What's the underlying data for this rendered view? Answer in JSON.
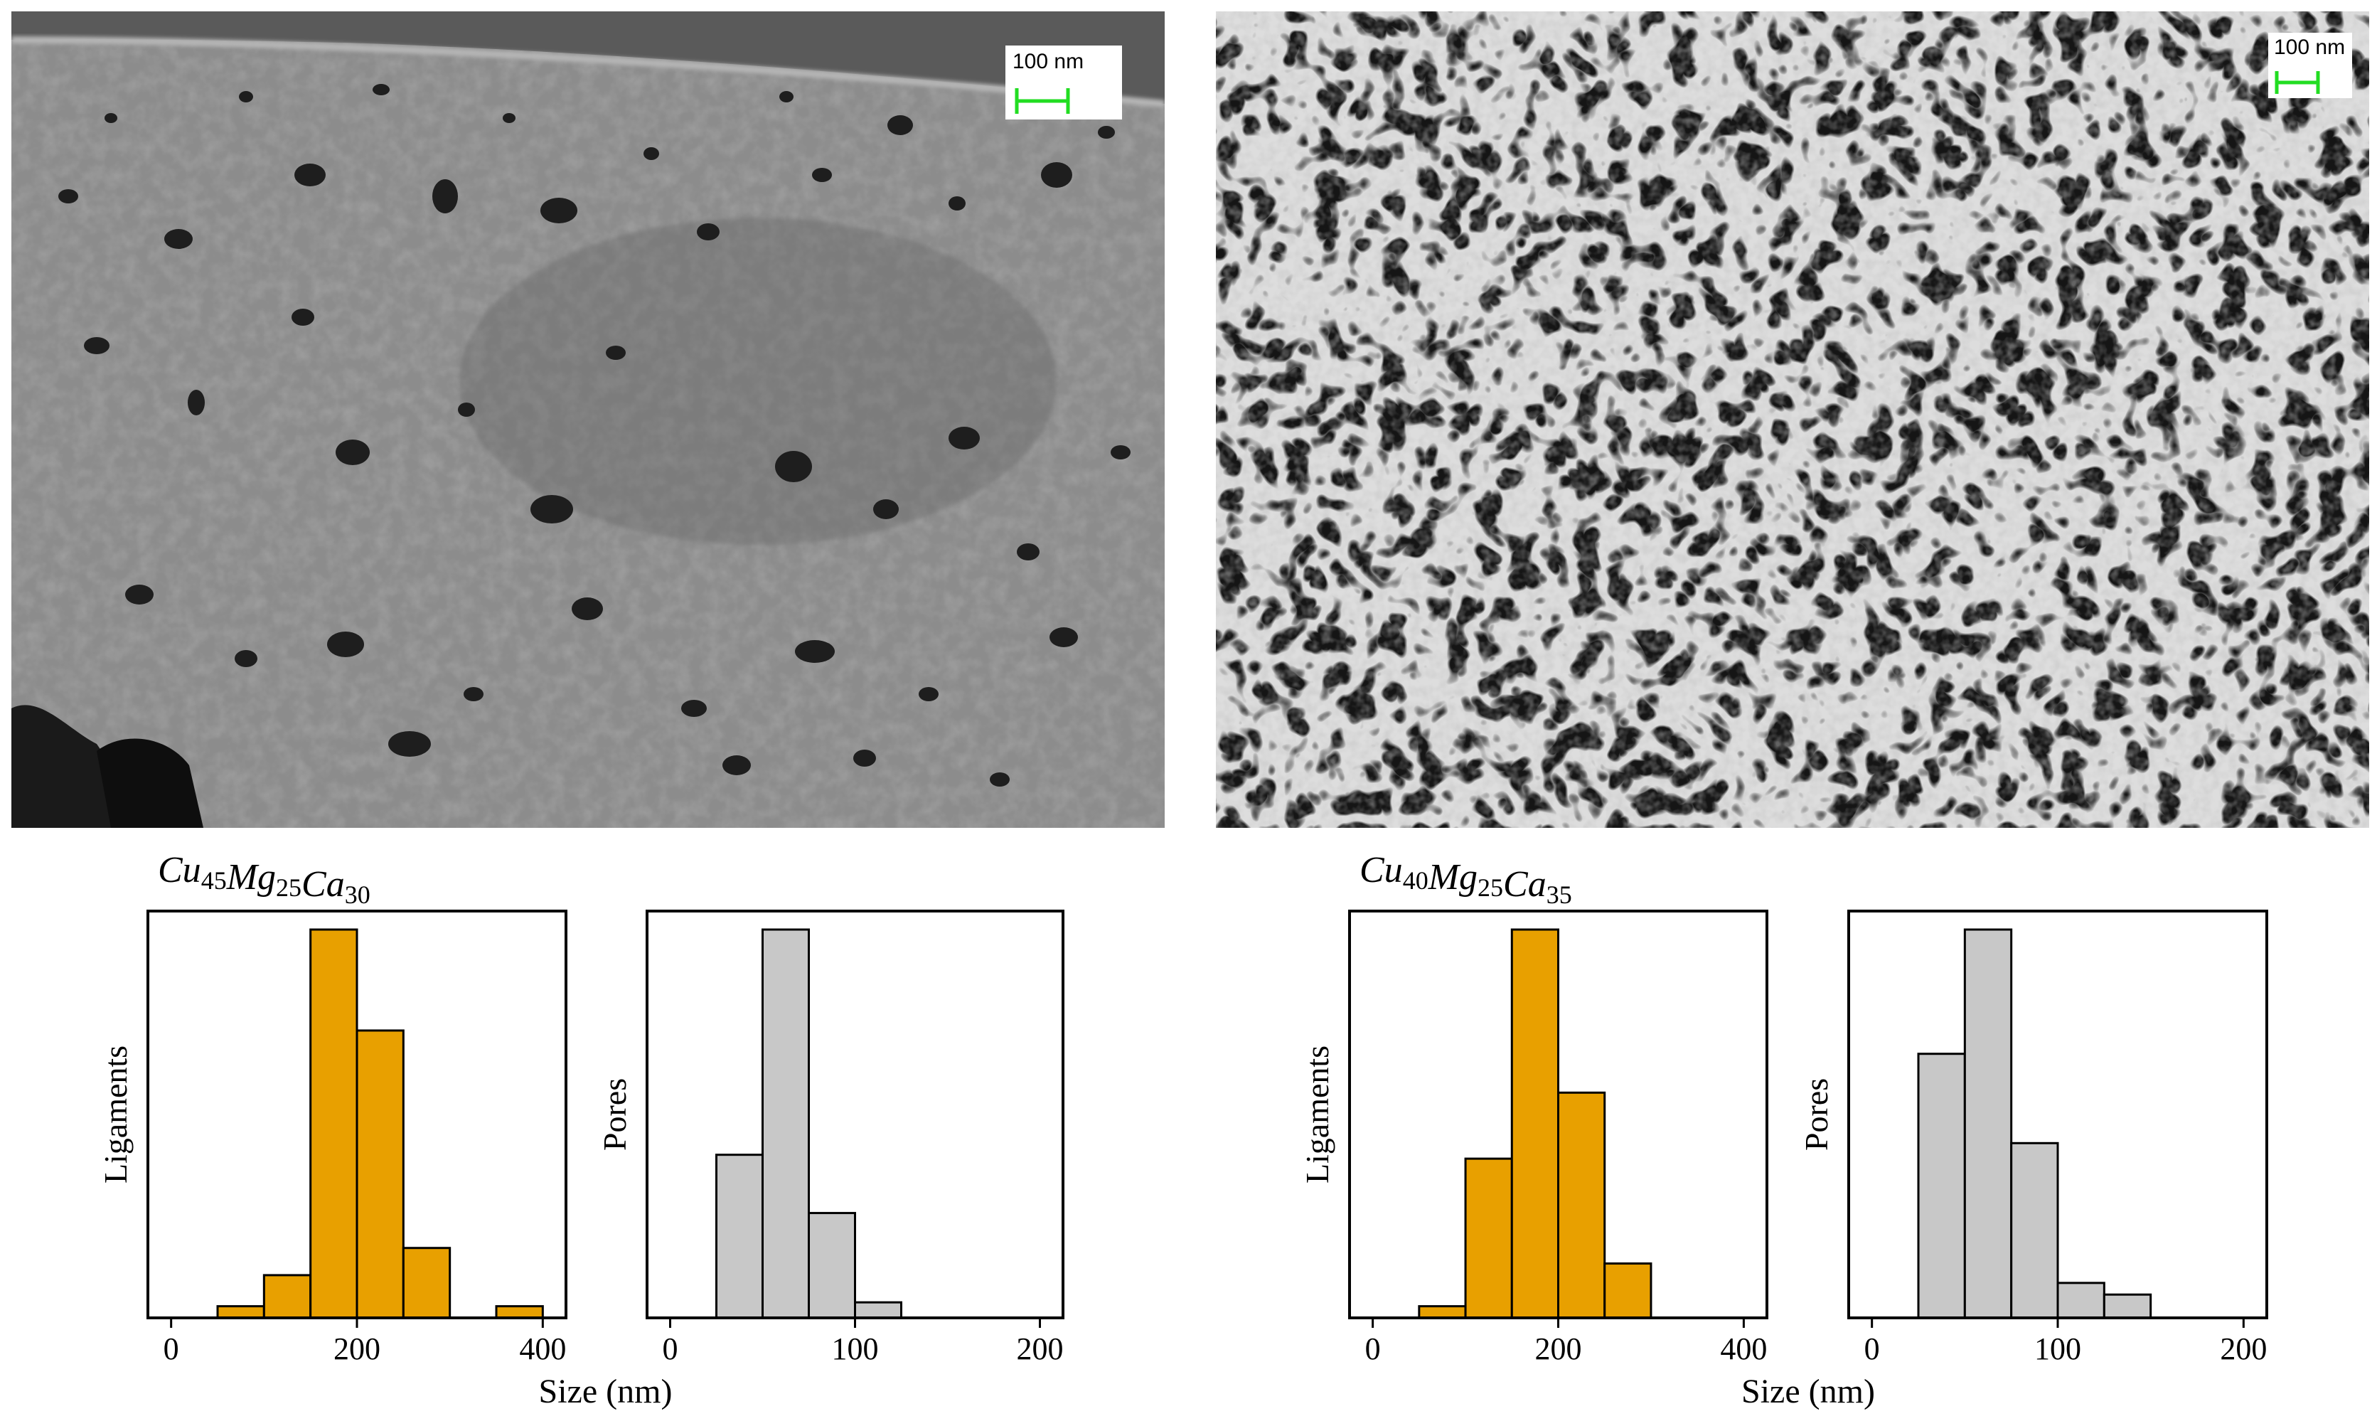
{
  "panels": [
    {
      "id": "left",
      "title_main": [
        "Cu",
        "Mg",
        "Ca"
      ],
      "title_subs": [
        "45",
        "25",
        "30"
      ],
      "scale_bar_label": "100 nm",
      "micrograph": {
        "tone": "dense, mostly continuous gray surface with scattered dark pores"
      }
    },
    {
      "id": "right",
      "title_main": [
        "Cu",
        "Mg",
        "Ca"
      ],
      "title_subs": [
        "40",
        "25",
        "35"
      ],
      "scale_bar_label": "100 nm",
      "micrograph": {
        "tone": "open ligament network with dark interconnected pores"
      }
    }
  ],
  "common": {
    "x_axis_label": "Size (nm)",
    "ligaments_ylabel": "Ligaments",
    "pores_ylabel": "Pores",
    "scale_bar_color": "#22dd22"
  },
  "colors": {
    "ligament_fill": "#e8a000",
    "pore_fill": "#c8c8c8",
    "bar_stroke": "#000000"
  },
  "chart_data": [
    {
      "type": "bar",
      "panel": "Cu45Mg25Ca30",
      "series_label": "Ligaments",
      "xlim": [
        -25,
        425
      ],
      "xticks": [
        0,
        200,
        400
      ],
      "bin_edges": [
        50,
        100,
        150,
        200,
        250,
        300,
        350,
        400
      ],
      "values": [
        3,
        11,
        100,
        74,
        18,
        0,
        3
      ],
      "ylim": [
        0,
        100
      ],
      "y_tick_labels": "none",
      "grid": false
    },
    {
      "type": "bar",
      "panel": "Cu45Mg25Ca30",
      "series_label": "Pores",
      "xlim": [
        -12.5,
        212.5
      ],
      "xticks": [
        0,
        100,
        200
      ],
      "bin_edges": [
        25,
        50,
        75,
        100,
        125
      ],
      "values": [
        42,
        100,
        27,
        4
      ],
      "ylim": [
        0,
        100
      ],
      "y_tick_labels": "none",
      "grid": false
    },
    {
      "type": "bar",
      "panel": "Cu40Mg25Ca35",
      "series_label": "Ligaments",
      "xlim": [
        -25,
        425
      ],
      "xticks": [
        0,
        200,
        400
      ],
      "bin_edges": [
        50,
        100,
        150,
        200,
        250,
        300
      ],
      "values": [
        3,
        41,
        100,
        58,
        14
      ],
      "ylim": [
        0,
        100
      ],
      "y_tick_labels": "none",
      "grid": false
    },
    {
      "type": "bar",
      "panel": "Cu40Mg25Ca35",
      "series_label": "Pores",
      "xlim": [
        -12.5,
        212.5
      ],
      "xticks": [
        0,
        100,
        200
      ],
      "bin_edges": [
        25,
        50,
        75,
        100,
        125,
        150
      ],
      "values": [
        68,
        100,
        45,
        9,
        6
      ],
      "ylim": [
        0,
        100
      ],
      "y_tick_labels": "none",
      "grid": false
    }
  ]
}
